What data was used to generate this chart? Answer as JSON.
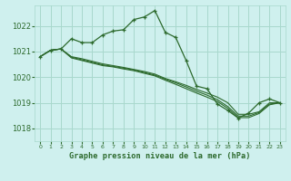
{
  "title": "Graphe pression niveau de la mer (hPa)",
  "bg_color": "#cff0ee",
  "grid_color": "#a8d8cc",
  "line_color": "#2d6a2d",
  "xlim": [
    -0.5,
    23.5
  ],
  "ylim": [
    1017.5,
    1022.8
  ],
  "yticks": [
    1018,
    1019,
    1020,
    1021,
    1022
  ],
  "xticks": [
    0,
    1,
    2,
    3,
    4,
    5,
    6,
    7,
    8,
    9,
    10,
    11,
    12,
    13,
    14,
    15,
    16,
    17,
    18,
    19,
    20,
    21,
    22,
    23
  ],
  "series": [
    {
      "x": [
        0,
        1,
        2,
        3,
        4,
        5,
        6,
        7,
        8,
        9,
        10,
        11,
        12,
        13,
        14,
        15,
        16,
        17,
        18,
        19,
        20,
        21,
        22,
        23
      ],
      "y": [
        1020.8,
        1021.05,
        1021.1,
        1021.5,
        1021.35,
        1021.35,
        1021.65,
        1021.8,
        1021.85,
        1022.25,
        1022.35,
        1022.6,
        1021.75,
        1021.55,
        1020.65,
        1019.65,
        1019.55,
        1018.95,
        1018.7,
        1018.4,
        1018.6,
        1019.0,
        1019.15,
        1019.0
      ],
      "marker": "+"
    },
    {
      "x": [
        0,
        1,
        2,
        3,
        4,
        5,
        6,
        7,
        8,
        9,
        10,
        11,
        12,
        13,
        14,
        15,
        16,
        17,
        18,
        19,
        20,
        21,
        22,
        23
      ],
      "y": [
        1020.8,
        1021.05,
        1021.1,
        1020.8,
        1020.72,
        1020.62,
        1020.52,
        1020.45,
        1020.38,
        1020.3,
        1020.22,
        1020.12,
        1019.95,
        1019.82,
        1019.68,
        1019.52,
        1019.38,
        1019.22,
        1019.0,
        1018.55,
        1018.55,
        1018.65,
        1019.0,
        1019.0
      ],
      "marker": null
    },
    {
      "x": [
        0,
        1,
        2,
        3,
        4,
        5,
        6,
        7,
        8,
        9,
        10,
        11,
        12,
        13,
        14,
        15,
        16,
        17,
        18,
        19,
        20,
        21,
        22,
        23
      ],
      "y": [
        1020.8,
        1021.05,
        1021.1,
        1020.78,
        1020.68,
        1020.58,
        1020.48,
        1020.42,
        1020.35,
        1020.28,
        1020.18,
        1020.08,
        1019.92,
        1019.78,
        1019.62,
        1019.45,
        1019.3,
        1019.12,
        1018.85,
        1018.48,
        1018.48,
        1018.62,
        1018.95,
        1019.0
      ],
      "marker": null
    },
    {
      "x": [
        0,
        1,
        2,
        3,
        4,
        5,
        6,
        7,
        8,
        9,
        10,
        11,
        12,
        13,
        14,
        15,
        16,
        17,
        18,
        19,
        20,
        21,
        22,
        23
      ],
      "y": [
        1020.8,
        1021.05,
        1021.1,
        1020.75,
        1020.65,
        1020.55,
        1020.45,
        1020.4,
        1020.32,
        1020.25,
        1020.15,
        1020.05,
        1019.88,
        1019.72,
        1019.55,
        1019.38,
        1019.22,
        1019.05,
        1018.78,
        1018.42,
        1018.42,
        1018.58,
        1018.92,
        1019.0
      ],
      "marker": null
    }
  ]
}
